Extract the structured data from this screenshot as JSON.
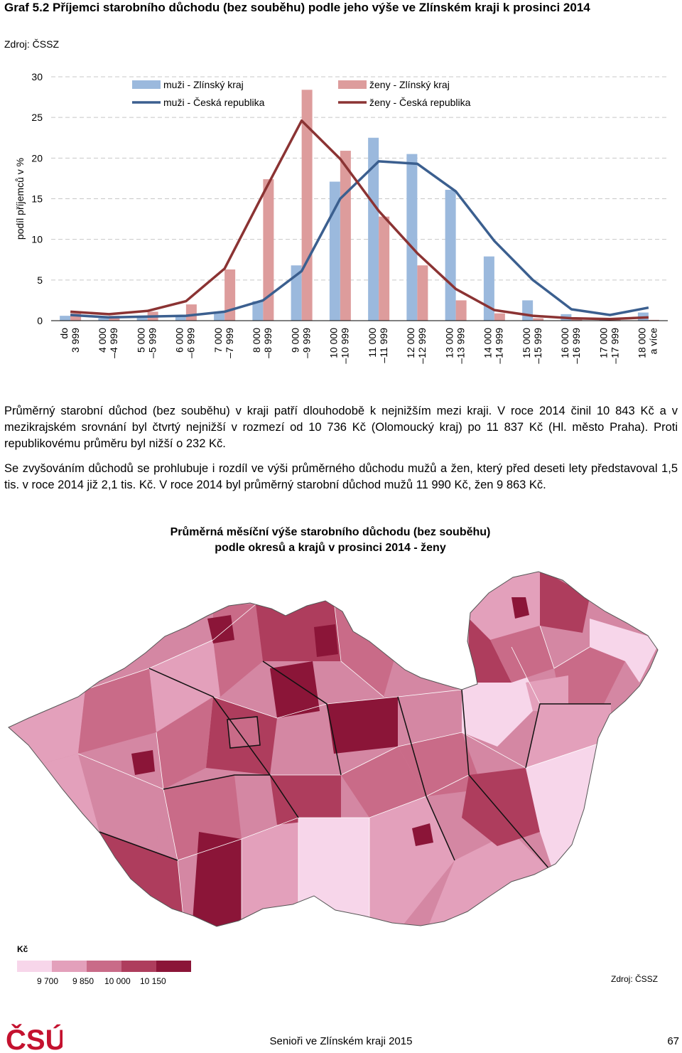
{
  "page": {
    "graph_title": "Graf 5.2 Příjemci starobního důchodu (bez souběhu) podle jeho výše ve Zlínském kraji k prosinci 2014",
    "source_top": "Zdroj: ČSSZ",
    "paragraph1": "Průměrný starobní důchod (bez souběhu) v kraji patří dlouhodobě k nejnižším mezi kraji. V roce 2014 činil 10 843 Kč a v mezikrajském srovnání byl čtvrtý nejnižší v rozmezí od 10 736 Kč (Olomoucký kraj) po 11 837 Kč (Hl. město Praha). Proti republikovému průměru byl nižší o 232 Kč.",
    "paragraph2": "Se zvyšováním důchodů se prohlubuje i rozdíl ve výši průměrného důchodu mužů a žen, který před deseti lety představoval 1,5 tis. v roce 2014 již 2,1 tis. Kč. V roce 2014 byl průměrný starobní důchod mužů 11 990 Kč, žen 9 863 Kč.",
    "map_title_line1": "Průměrná měsíční výše starobního důchodu (bez souběhu)",
    "map_title_line2": "podle okresů a krajů v prosinci 2014 - ženy",
    "legend_title": "Kč",
    "legend_values": [
      "9 700",
      "9 850",
      "10 000",
      "10 150"
    ],
    "legend_colors": [
      "#f7d6ea",
      "#e3a0bb",
      "#c96b88",
      "#ae3d5d",
      "#8b1538"
    ],
    "source_map": "Zdroj: ČSSZ",
    "footer_center": "Senioři ve Zlínském kraji 2015",
    "footer_page": "67",
    "logo": "ČSÚ"
  },
  "chart_data": {
    "type": "bar",
    "ylabel": "podíl příjemců v %",
    "ylim": [
      0,
      30
    ],
    "yticks": [
      0,
      5,
      10,
      15,
      20,
      25,
      30
    ],
    "grid": "horizontal dashed",
    "legend_placement": "top",
    "categories": [
      [
        "do",
        "3 999"
      ],
      [
        "4 000",
        "–4 999"
      ],
      [
        "5 000",
        "–5 999"
      ],
      [
        "6 000",
        "–6 999"
      ],
      [
        "7 000",
        "–7 999"
      ],
      [
        "8 000",
        "–8 999"
      ],
      [
        "9 000",
        "–9 999"
      ],
      [
        "10 000",
        "–10 999"
      ],
      [
        "11 000",
        "–11 999"
      ],
      [
        "12 000",
        "–12 999"
      ],
      [
        "13 000",
        "–13 999"
      ],
      [
        "14 000",
        "–14 999"
      ],
      [
        "15 000",
        "–15 999"
      ],
      [
        "16 000",
        "–16 999"
      ],
      [
        "17 000",
        "–17 999"
      ],
      [
        "18 000",
        "a více"
      ]
    ],
    "series": [
      {
        "name": "muži - Zlínský kraj",
        "kind": "bar",
        "color": "#9bb9dd",
        "values": [
          0.6,
          0.3,
          0.4,
          0.6,
          1.1,
          2.4,
          6.8,
          17.1,
          22.5,
          20.5,
          16.1,
          7.9,
          2.5,
          0.8,
          0.3,
          1.0
        ]
      },
      {
        "name": "ženy - Zlínský kraj",
        "kind": "bar",
        "color": "#dd9c9c",
        "values": [
          0.9,
          0.6,
          1.1,
          2.0,
          6.3,
          17.4,
          28.4,
          20.9,
          12.8,
          6.8,
          2.5,
          0.9,
          0.3,
          0.2,
          0.1,
          0.1
        ]
      },
      {
        "name": "muži - Česká republika",
        "kind": "line",
        "color": "#3b5f8f",
        "values": [
          0.7,
          0.4,
          0.5,
          0.6,
          1.1,
          2.5,
          6.1,
          15.0,
          19.6,
          19.3,
          15.9,
          9.8,
          5.0,
          1.4,
          0.7,
          1.6
        ]
      },
      {
        "name": "ženy - Česká republika",
        "kind": "line",
        "color": "#8b3333",
        "values": [
          1.1,
          0.8,
          1.2,
          2.4,
          6.4,
          15.6,
          24.6,
          19.9,
          13.5,
          8.3,
          3.9,
          1.3,
          0.6,
          0.3,
          0.2,
          0.4
        ]
      }
    ]
  }
}
